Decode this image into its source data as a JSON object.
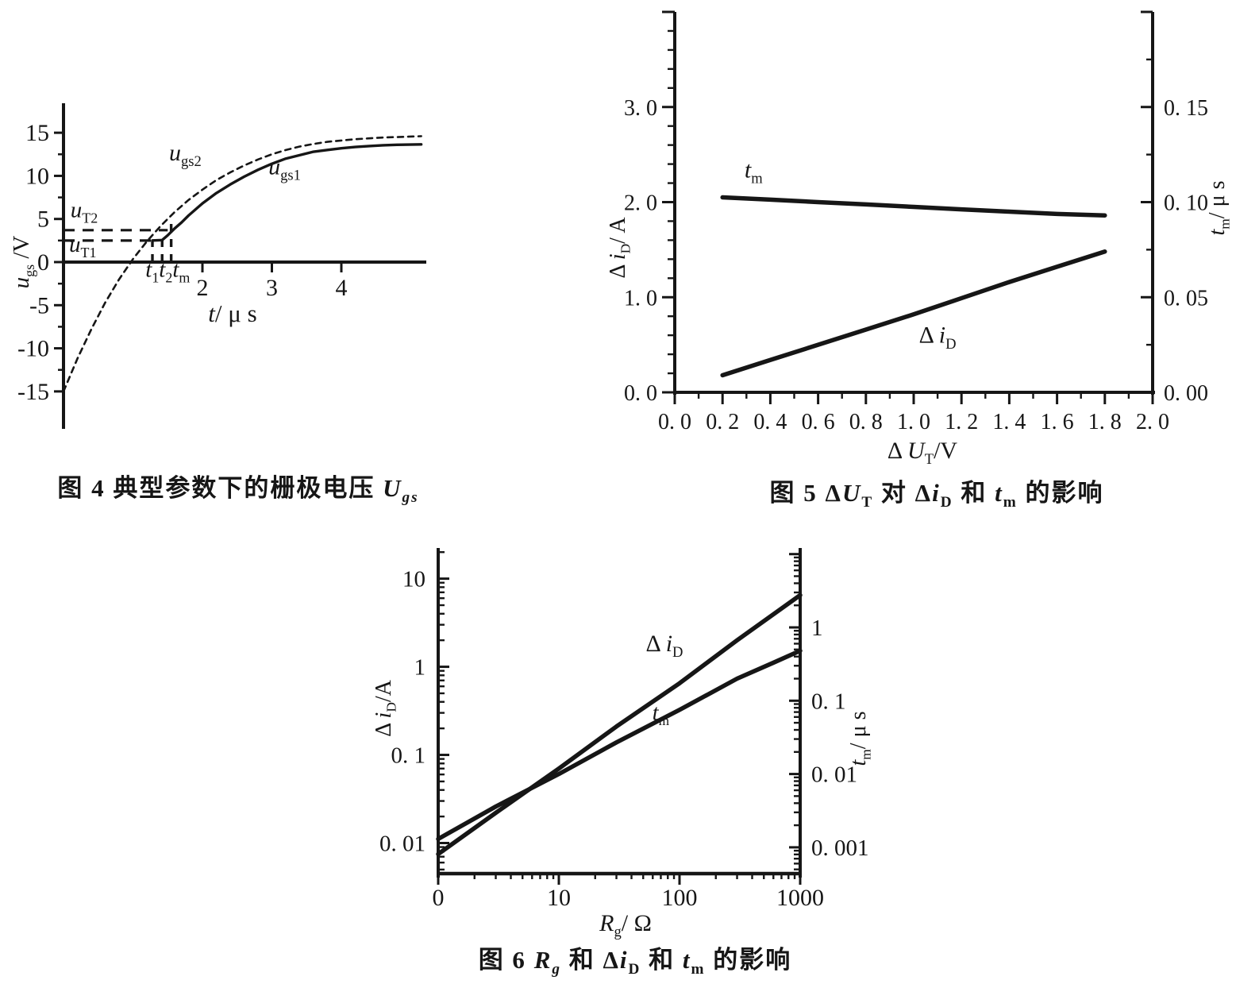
{
  "style": {
    "ink": "#161616",
    "paper": "#ffffff"
  },
  "chart_data": [
    {
      "type": "line",
      "id": "fig4",
      "caption": "图 4  典型参数下的栅极电压 ~U|gs|~",
      "x_axis": {
        "label": "~t~/ μ s",
        "range": [
          0,
          5.2
        ],
        "ticks": [
          {
            "v": 2,
            "t": "2"
          },
          {
            "v": 3,
            "t": "3"
          },
          {
            "v": 4,
            "t": "4"
          }
        ]
      },
      "y_axis": {
        "label": "~u~|gs| /V",
        "range": [
          -18.9,
          18.4
        ],
        "minor_step": 2.5,
        "ticks": [
          {
            "v": 15,
            "t": "15"
          },
          {
            "v": 10,
            "t": "10"
          },
          {
            "v": 5,
            "t": "5"
          },
          {
            "v": 0,
            "t": "0"
          },
          {
            "v": -5,
            "t": "-5"
          },
          {
            "v": -10,
            "t": "-10"
          },
          {
            "v": -15,
            "t": "-15"
          }
        ]
      },
      "series": [
        {
          "name": "u_gs2",
          "label": "~u~|gs2|",
          "style": "dashed",
          "label_pos": [
            1.52,
            11.8
          ],
          "points": [
            [
              0,
              -15
            ],
            [
              0.2,
              -11.2
            ],
            [
              0.4,
              -7.8
            ],
            [
              0.6,
              -4.7
            ],
            [
              0.8,
              -2.0
            ],
            [
              1.0,
              0.35
            ],
            [
              1.2,
              2.4
            ],
            [
              1.3,
              3.3
            ],
            [
              1.4,
              4.2
            ],
            [
              1.5,
              5.0
            ],
            [
              1.6,
              5.8
            ],
            [
              1.8,
              7.2
            ],
            [
              2.0,
              8.4
            ],
            [
              2.2,
              9.5
            ],
            [
              2.4,
              10.4
            ],
            [
              2.6,
              11.2
            ],
            [
              2.8,
              11.9
            ],
            [
              3.0,
              12.5
            ],
            [
              3.2,
              13.0
            ],
            [
              3.4,
              13.4
            ],
            [
              3.6,
              13.7
            ],
            [
              3.8,
              13.95
            ],
            [
              4.0,
              14.1
            ],
            [
              4.2,
              14.25
            ],
            [
              4.4,
              14.35
            ],
            [
              4.6,
              14.45
            ],
            [
              4.8,
              14.5
            ],
            [
              5.15,
              14.6
            ]
          ]
        },
        {
          "name": "u_gs1",
          "label": "~u~|gs1|",
          "style": "solid",
          "label_pos": [
            2.95,
            10.2
          ],
          "points": [
            [
              1.28,
              2.5
            ],
            [
              1.42,
              2.55
            ],
            [
              1.5,
              3.1
            ],
            [
              1.6,
              3.9
            ],
            [
              1.7,
              4.6
            ],
            [
              1.8,
              5.4
            ],
            [
              2.0,
              6.8
            ],
            [
              2.2,
              8.0
            ],
            [
              2.4,
              9.0
            ],
            [
              2.6,
              9.9
            ],
            [
              2.8,
              10.7
            ],
            [
              3.0,
              11.4
            ],
            [
              3.2,
              12.0
            ],
            [
              3.4,
              12.4
            ],
            [
              3.6,
              12.8
            ],
            [
              3.8,
              13.0
            ],
            [
              4.0,
              13.2
            ],
            [
              4.2,
              13.35
            ],
            [
              4.4,
              13.45
            ],
            [
              4.6,
              13.55
            ],
            [
              4.8,
              13.6
            ],
            [
              5.15,
              13.65
            ]
          ]
        }
      ],
      "annotations": {
        "h_lines": [
          {
            "name": "u_T2",
            "label": "~u~|T2|",
            "y": 3.7,
            "x_to": 1.5,
            "label_pos": [
              0.1,
              5.2
            ]
          },
          {
            "name": "u_T1",
            "label": "~u~|T1|",
            "y": 2.5,
            "x_to": 1.28,
            "label_pos": [
              0.08,
              1.2
            ]
          }
        ],
        "v_lines": [
          {
            "x": 1.28,
            "y_to": 2.5
          },
          {
            "x": 1.42,
            "y_to": 3.4
          },
          {
            "x": 1.55,
            "y_to": 5.2
          }
        ],
        "t_label": "~t~|1|~t~|2|~t~|m|",
        "t_label_pos": [
          1.18,
          -1.7
        ]
      }
    },
    {
      "type": "line",
      "id": "fig5",
      "caption": "图 5  Δ~U~|T| 对 Δ~i~|D| 和 ~t~|m| 的影响",
      "x_axis": {
        "label": "Δ ~U~|T|/V",
        "range": [
          0,
          2.0
        ],
        "minor_step": 0.1,
        "ticks": [
          {
            "v": 0.0,
            "t": "0. 0"
          },
          {
            "v": 0.2,
            "t": "0. 2"
          },
          {
            "v": 0.4,
            "t": "0. 4"
          },
          {
            "v": 0.6,
            "t": "0. 6"
          },
          {
            "v": 0.8,
            "t": "0. 8"
          },
          {
            "v": 1.0,
            "t": "1. 0"
          },
          {
            "v": 1.2,
            "t": "1. 2"
          },
          {
            "v": 1.4,
            "t": "1. 4"
          },
          {
            "v": 1.6,
            "t": "1. 6"
          },
          {
            "v": 1.8,
            "t": "1. 8"
          },
          {
            "v": 2.0,
            "t": "2. 0"
          }
        ]
      },
      "left_axis": {
        "label": "Δ ~i~|D|/ A",
        "range": [
          0,
          4.0
        ],
        "minor_step": 0.2,
        "ticks": [
          {
            "v": 3.0,
            "t": "3. 0"
          },
          {
            "v": 2.0,
            "t": "2. 0"
          },
          {
            "v": 1.0,
            "t": "1. 0"
          },
          {
            "v": 0.0,
            "t": "0. 0"
          }
        ]
      },
      "right_axis": {
        "label": "~t~|m|/ μ s",
        "range": [
          0,
          0.2
        ],
        "minor_step": 0.025,
        "ticks": [
          {
            "v": 0.15,
            "t": "0. 15"
          },
          {
            "v": 0.1,
            "t": "0. 10"
          },
          {
            "v": 0.05,
            "t": "0. 05"
          },
          {
            "v": 0.0,
            "t": "0. 00"
          }
        ]
      },
      "series": [
        {
          "name": "t_m",
          "label": "~t~|m|",
          "axis": "right",
          "label_pos": [
            0.33,
            0.113
          ],
          "points": [
            [
              0.2,
              0.1025
            ],
            [
              0.4,
              0.1013
            ],
            [
              0.6,
              0.1
            ],
            [
              0.8,
              0.0988
            ],
            [
              1.0,
              0.0975
            ],
            [
              1.2,
              0.0962
            ],
            [
              1.4,
              0.095
            ],
            [
              1.6,
              0.0938
            ],
            [
              1.8,
              0.093
            ]
          ]
        },
        {
          "name": "delta_iD",
          "label": "Δ ~i~|D|",
          "axis": "left",
          "label_pos": [
            1.1,
            0.52
          ],
          "points": [
            [
              0.2,
              0.18
            ],
            [
              0.4,
              0.34
            ],
            [
              0.6,
              0.5
            ],
            [
              0.8,
              0.66
            ],
            [
              1.0,
              0.82
            ],
            [
              1.2,
              0.99
            ],
            [
              1.4,
              1.16
            ],
            [
              1.6,
              1.32
            ],
            [
              1.8,
              1.48
            ]
          ]
        }
      ]
    },
    {
      "type": "line",
      "id": "fig6",
      "caption": "图 6  ~R|g|~ 和 Δ~i~|D| 和 ~t~|m| 的影响",
      "x_axis": {
        "label": "~R~|g|/ Ω",
        "log": true,
        "range": [
          1,
          1000
        ],
        "ticks": [
          {
            "v": 1,
            "t": "0"
          },
          {
            "v": 10,
            "t": "10"
          },
          {
            "v": 100,
            "t": "100"
          },
          {
            "v": 1000,
            "t": "1000"
          }
        ]
      },
      "left_axis": {
        "label": "Δ ~i~|D|/A",
        "log": true,
        "range": [
          0.0045,
          20
        ],
        "ticks": [
          {
            "v": 10,
            "t": "10"
          },
          {
            "v": 1,
            "t": "1"
          },
          {
            "v": 0.1,
            "t": "0. 1"
          },
          {
            "v": 0.01,
            "t": "0. 01"
          }
        ]
      },
      "right_axis": {
        "label": "~t~|m|/ μ s",
        "log": true,
        "range": [
          0.0005,
          10
        ],
        "ticks": [
          {
            "v": 1,
            "t": "1"
          },
          {
            "v": 0.1,
            "t": "0. 1"
          },
          {
            "v": 0.01,
            "t": "0. 01"
          },
          {
            "v": 0.001,
            "t": "0. 001"
          }
        ]
      },
      "series": [
        {
          "name": "delta_iD",
          "label": "Δ ~i~|D|",
          "axis": "left",
          "label_pos": [
            75,
            1.5
          ],
          "points": [
            [
              1,
              0.0075
            ],
            [
              3,
              0.022
            ],
            [
              10,
              0.07
            ],
            [
              30,
              0.21
            ],
            [
              100,
              0.65
            ],
            [
              300,
              2.0
            ],
            [
              1000,
              6.5
            ]
          ]
        },
        {
          "name": "t_m",
          "label": "~t~|m|",
          "axis": "right",
          "label_pos": [
            70,
            0.055
          ],
          "points": [
            [
              1,
              0.0013
            ],
            [
              3,
              0.0036
            ],
            [
              10,
              0.01
            ],
            [
              30,
              0.027
            ],
            [
              100,
              0.075
            ],
            [
              300,
              0.2
            ],
            [
              600,
              0.33
            ],
            [
              1000,
              0.48
            ]
          ]
        }
      ]
    }
  ]
}
